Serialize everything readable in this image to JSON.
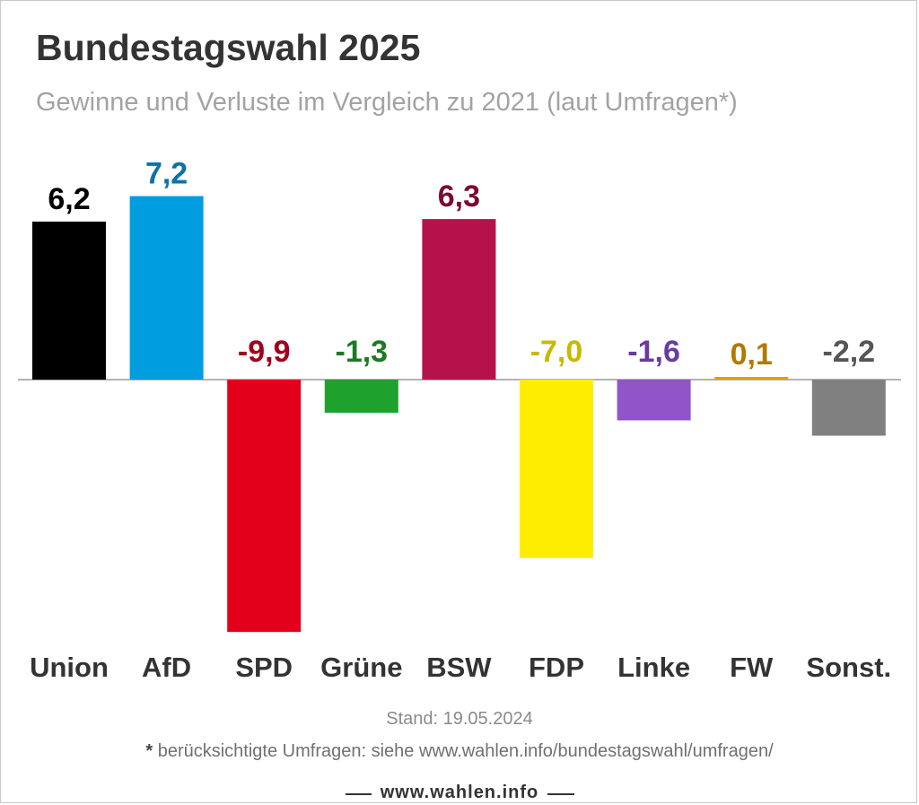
{
  "title": "Bundestagswahl 2025",
  "subtitle": "Gewinne und Verluste im Vergleich zu 2021 (laut Umfragen*)",
  "stand": "Stand: 19.05.2024",
  "footnote_star": "*",
  "footnote": "berücksichtigte Umfragen: siehe www.wahlen.info/bundestagswahl/umfragen/",
  "brand": "www.wahlen.info",
  "chart_data": {
    "type": "bar",
    "title": "Bundestagswahl 2025",
    "subtitle": "Gewinne und Verluste im Vergleich zu 2021 (laut Umfragen*)",
    "xlabel": "",
    "ylabel": "",
    "ylim": [
      -9.9,
      7.2
    ],
    "grid": false,
    "legend": "none",
    "categories": [
      "Union",
      "AfD",
      "SPD",
      "Grüne",
      "BSW",
      "FDP",
      "Linke",
      "FW",
      "Sonst."
    ],
    "values": [
      6.2,
      7.2,
      -9.9,
      -1.3,
      6.3,
      -7.0,
      -1.6,
      0.1,
      -2.2
    ],
    "value_labels": [
      "6,2",
      "7,2",
      "-9,9",
      "-1,3",
      "6,3",
      "-7,0",
      "-1,6",
      "0,1",
      "-2,2"
    ],
    "bar_colors": [
      "#000000",
      "#009ee0",
      "#e3001b",
      "#1ea12d",
      "#b5124c",
      "#ffed00",
      "#9155c7",
      "#e0a000",
      "#808080"
    ],
    "label_colors": [
      "#000000",
      "#0a72a8",
      "#a0001b",
      "#1c7a24",
      "#7a0a33",
      "#c9b800",
      "#6a3aa0",
      "#b07a00",
      "#555555"
    ]
  }
}
